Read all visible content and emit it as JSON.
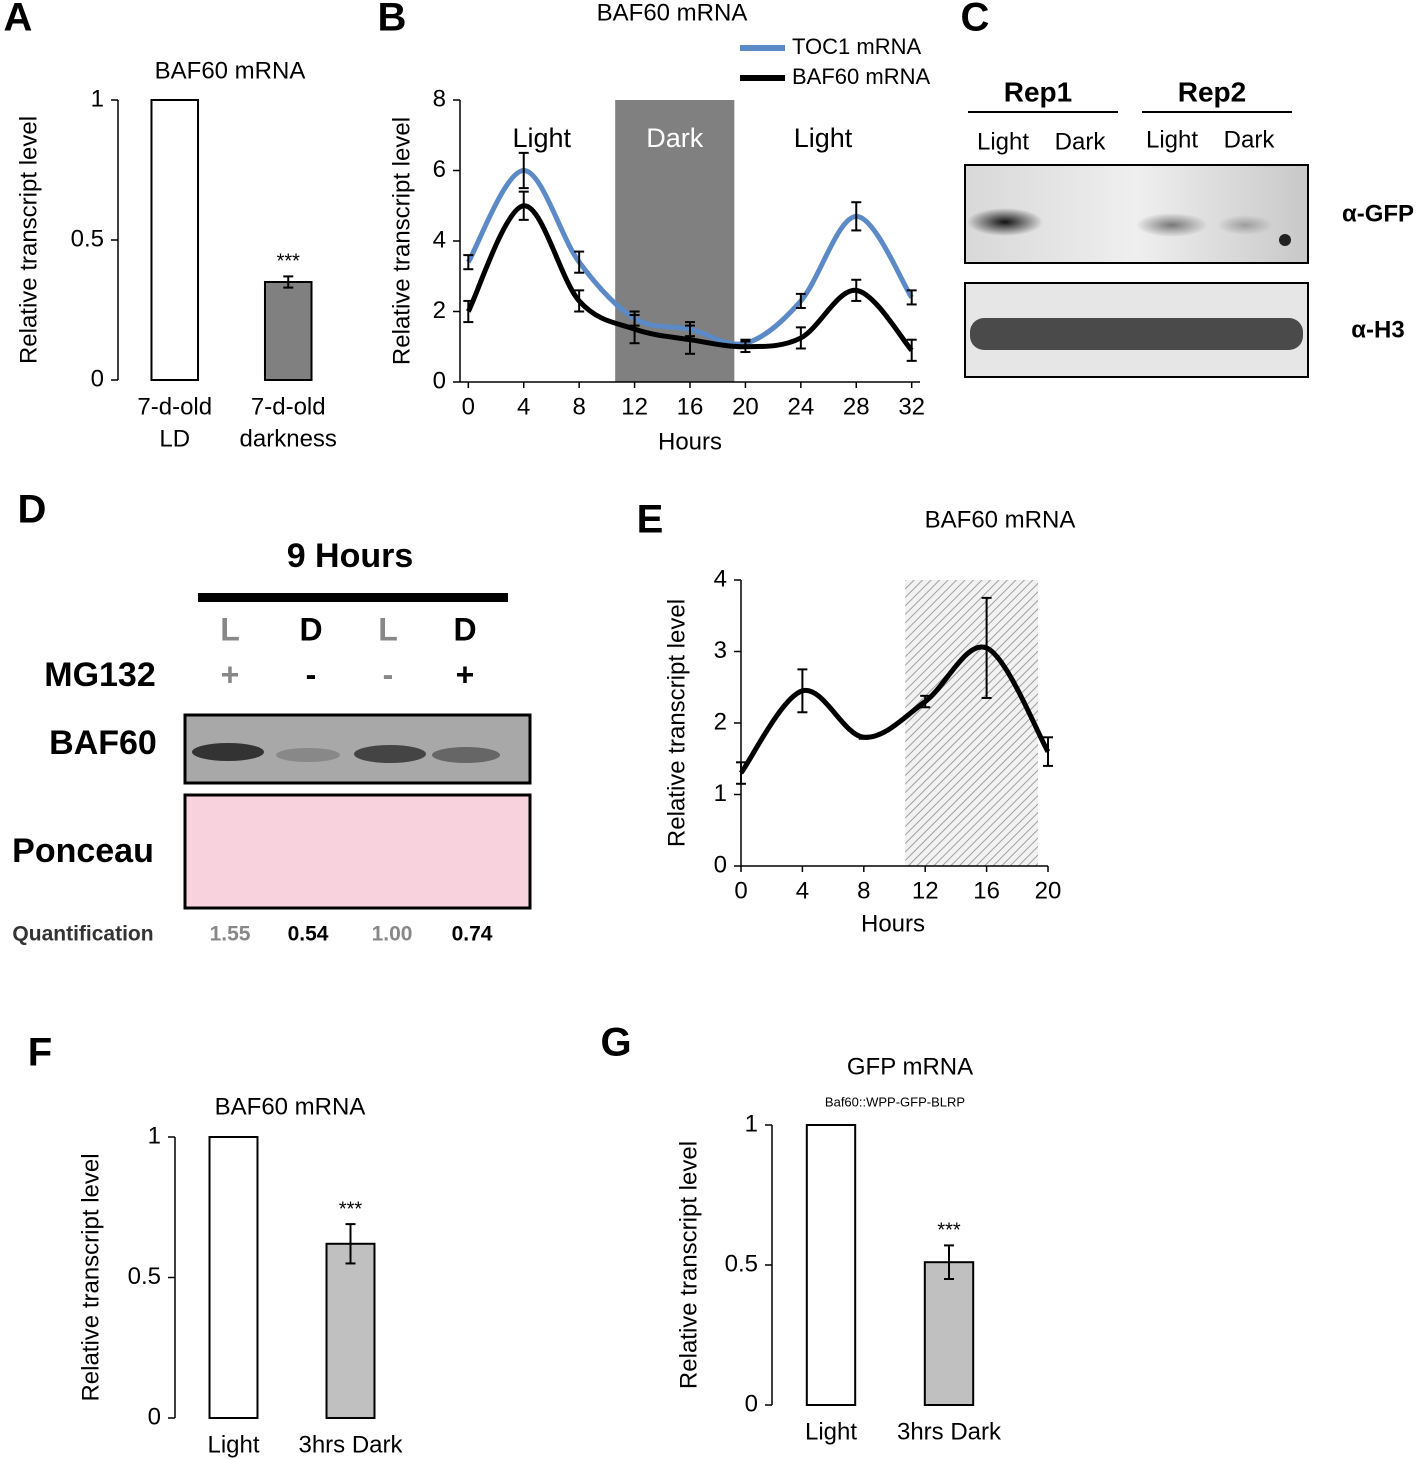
{
  "chart_data": [
    {
      "type": "bar",
      "panel_label": "A",
      "title": "BAF60 mRNA",
      "y_label": "Relative transcript level",
      "categories": [
        [
          "7-d-old",
          "LD"
        ],
        [
          "7-d-old",
          "darkness"
        ]
      ],
      "values": [
        1,
        0.35
      ],
      "errors": [
        null,
        0.02
      ],
      "significance": [
        null,
        "***"
      ],
      "colors": [
        "#ffffff",
        "#808080"
      ],
      "ylim": [
        0,
        1
      ],
      "yticks": [
        0,
        0.5,
        1
      ]
    },
    {
      "type": "line",
      "panel_label": "B",
      "title": "BAF60 mRNA",
      "y_label": "Relative transcript level",
      "x_label": "Hours",
      "x": [
        0,
        4,
        8,
        12,
        16,
        20,
        24,
        28,
        32
      ],
      "series": [
        {
          "name": "TOC1 mRNA",
          "color": "#5b8ac6",
          "values": [
            3.4,
            6.0,
            3.4,
            1.8,
            1.5,
            1.1,
            2.3,
            4.7,
            2.4
          ],
          "errors": [
            0.2,
            0.5,
            0.3,
            0.2,
            0.2,
            0.1,
            0.2,
            0.4,
            0.2
          ]
        },
        {
          "name": "BAF60 mRNA",
          "color": "#000000",
          "values": [
            2.0,
            5.0,
            2.3,
            1.5,
            1.2,
            1.0,
            1.25,
            2.6,
            0.9
          ],
          "errors": [
            0.3,
            0.4,
            0.3,
            0.4,
            0.4,
            0.15,
            0.3,
            0.3,
            0.3
          ]
        }
      ],
      "phases": [
        {
          "label": "Light",
          "start": 0,
          "end": 10.6,
          "fill": null
        },
        {
          "label": "Dark",
          "start": 10.6,
          "end": 19.2,
          "fill": "#808080"
        },
        {
          "label": "Light",
          "start": 19.2,
          "end": 32,
          "fill": null
        }
      ],
      "xlim": [
        -0.6,
        32.6
      ],
      "xticks": [
        0,
        4,
        8,
        12,
        16,
        20,
        24,
        28,
        32
      ],
      "ylim": [
        0,
        8
      ],
      "yticks": [
        0,
        2,
        4,
        6,
        8
      ],
      "legend": "top-right"
    },
    {
      "type": "line",
      "panel_label": "E",
      "title": "BAF60 mRNA",
      "y_label": "Relative transcript level",
      "x_label": "Hours",
      "x": [
        0,
        4,
        8,
        12,
        16,
        20
      ],
      "series": [
        {
          "color": "#000000",
          "values": [
            1.3,
            2.45,
            1.8,
            2.3,
            3.05,
            1.6
          ],
          "errors": [
            0.15,
            0.3,
            0.02,
            0.08,
            0.7,
            0.2
          ]
        }
      ],
      "shaded_region": [
        10.7,
        19.35
      ],
      "xlim": [
        0,
        20
      ],
      "xticks": [
        0,
        4,
        8,
        12,
        16,
        20
      ],
      "ylim": [
        0,
        4
      ],
      "yticks": [
        0,
        1,
        2,
        3,
        4
      ]
    },
    {
      "type": "bar",
      "panel_label": "F",
      "title": "BAF60 mRNA",
      "y_label": "Relative transcript level",
      "categories": [
        [
          "Light"
        ],
        [
          "3hrs Dark"
        ]
      ],
      "values": [
        1,
        0.62
      ],
      "errors": [
        null,
        0.07
      ],
      "significance": [
        null,
        "***"
      ],
      "colors": [
        "#ffffff",
        "#c0c0c0"
      ],
      "ylim": [
        0,
        1
      ],
      "yticks": [
        0,
        0.5,
        1
      ]
    },
    {
      "type": "bar",
      "panel_label": "G",
      "title": "GFP mRNA",
      "subtitle": "Baf60::WPP-GFP-BLRP",
      "y_label": "Relative transcript level",
      "categories": [
        [
          "Light"
        ],
        [
          "3hrs Dark"
        ]
      ],
      "values": [
        1,
        0.51
      ],
      "errors": [
        null,
        0.06
      ],
      "significance": [
        null,
        "***"
      ],
      "colors": [
        "#ffffff",
        "#c0c0c0"
      ],
      "ylim": [
        0,
        1
      ],
      "yticks": [
        0,
        0.5,
        1
      ]
    }
  ],
  "blot_c": {
    "panel_label": "C",
    "replicates": [
      "Rep1",
      "Rep2"
    ],
    "lanes": [
      "Light",
      "Dark",
      "Light",
      "Dark"
    ],
    "antibodies": [
      "α-GFP",
      "α-H3"
    ]
  },
  "blot_d": {
    "panel_label": "D",
    "title": "9 Hours",
    "conditions": [
      "L",
      "D",
      "L",
      "D"
    ],
    "treatment": "MG132",
    "treatment_signs": [
      "+",
      "-",
      "-",
      "+"
    ],
    "rows": [
      "BAF60",
      "Ponceau"
    ],
    "quantification_label": "Quantification",
    "quantification": [
      "1.55",
      "0.54",
      "1.00",
      "0.74"
    ]
  }
}
